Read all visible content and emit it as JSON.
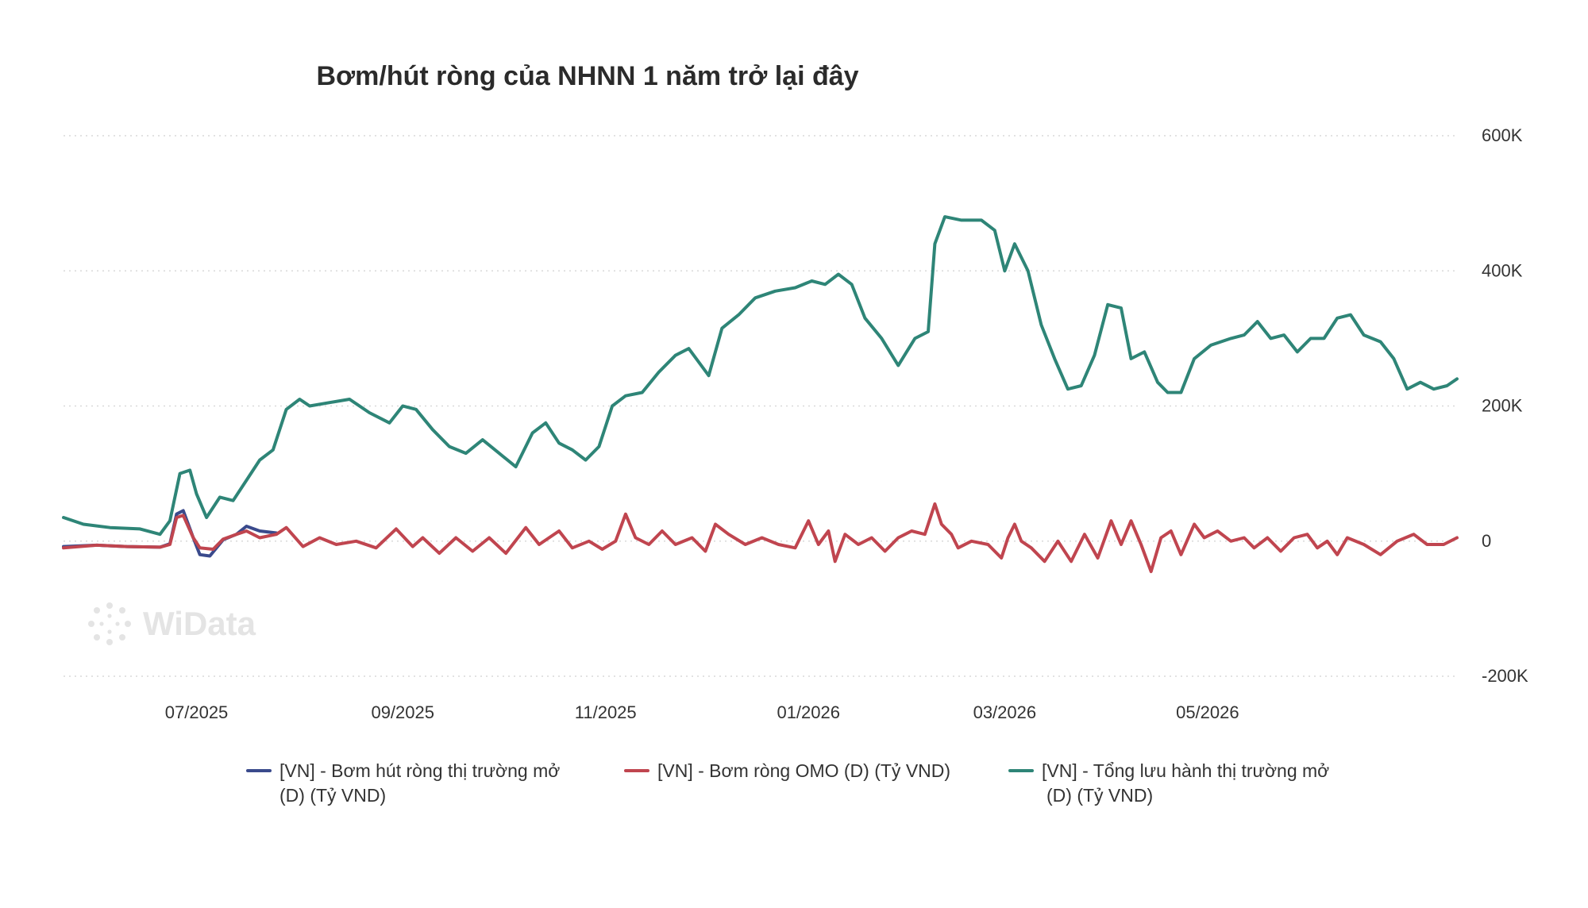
{
  "chart_data": {
    "type": "line",
    "title": "Bơm/hút ròng của NHNN 1 năm trở lại đây",
    "xlabel": "",
    "ylabel": "",
    "x_range": [
      "2025-05-22",
      "2026-07-15"
    ],
    "ylim": [
      -200000,
      600000
    ],
    "y_ticks": [
      {
        "value": 600000,
        "label": "600K"
      },
      {
        "value": 400000,
        "label": "400K"
      },
      {
        "value": 200000,
        "label": "200K"
      },
      {
        "value": 0,
        "label": "0"
      },
      {
        "value": -200000,
        "label": "-200K"
      }
    ],
    "x_ticks": [
      {
        "date": "2025-07-01",
        "label": "07/2025"
      },
      {
        "date": "2025-09-01",
        "label": "09/2025"
      },
      {
        "date": "2025-11-01",
        "label": "11/2025"
      },
      {
        "date": "2026-01-01",
        "label": "01/2026"
      },
      {
        "date": "2026-03-01",
        "label": "03/2026"
      },
      {
        "date": "2026-05-01",
        "label": "05/2026"
      }
    ],
    "grid": true,
    "legend_position": "bottom",
    "series": [
      {
        "name": "[VN] - Bơm hút ròng thị trường mở (D) (Tỷ VND)",
        "legend_lines": [
          "[VN] - Bơm hút ròng thị trường mở",
          "(D) (Tỷ VND)"
        ],
        "color": "#3a4a8c",
        "points": [
          [
            "2025-05-22",
            -8000
          ],
          [
            "2025-06-01",
            -6000
          ],
          [
            "2025-06-10",
            -8000
          ],
          [
            "2025-06-20",
            -9000
          ],
          [
            "2025-06-23",
            -4000
          ],
          [
            "2025-06-25",
            40000
          ],
          [
            "2025-06-27",
            45000
          ],
          [
            "2025-06-30",
            5000
          ],
          [
            "2025-07-02",
            -20000
          ],
          [
            "2025-07-05",
            -22000
          ],
          [
            "2025-07-09",
            2000
          ],
          [
            "2025-07-13",
            10000
          ],
          [
            "2025-07-16",
            22000
          ],
          [
            "2025-07-20",
            15000
          ],
          [
            "2025-07-25",
            12000
          ]
        ]
      },
      {
        "name": "[VN] - Bơm ròng OMO (D) (Tỷ VND)",
        "legend_lines": [
          "[VN] - Bơm ròng OMO (D) (Tỷ VND)"
        ],
        "color": "#c0454f",
        "points": [
          [
            "2025-05-22",
            -10000
          ],
          [
            "2025-06-01",
            -6000
          ],
          [
            "2025-06-10",
            -8000
          ],
          [
            "2025-06-20",
            -9000
          ],
          [
            "2025-06-23",
            -5000
          ],
          [
            "2025-06-25",
            35000
          ],
          [
            "2025-06-27",
            38000
          ],
          [
            "2025-06-30",
            5000
          ],
          [
            "2025-07-02",
            -10000
          ],
          [
            "2025-07-06",
            -12000
          ],
          [
            "2025-07-09",
            3000
          ],
          [
            "2025-07-13",
            10000
          ],
          [
            "2025-07-16",
            15000
          ],
          [
            "2025-07-20",
            5000
          ],
          [
            "2025-07-25",
            10000
          ],
          [
            "2025-07-28",
            20000
          ],
          [
            "2025-08-02",
            -8000
          ],
          [
            "2025-08-07",
            5000
          ],
          [
            "2025-08-12",
            -5000
          ],
          [
            "2025-08-18",
            0
          ],
          [
            "2025-08-24",
            -10000
          ],
          [
            "2025-08-30",
            18000
          ],
          [
            "2025-09-04",
            -8000
          ],
          [
            "2025-09-07",
            5000
          ],
          [
            "2025-09-12",
            -18000
          ],
          [
            "2025-09-17",
            5000
          ],
          [
            "2025-09-22",
            -15000
          ],
          [
            "2025-09-27",
            5000
          ],
          [
            "2025-10-02",
            -18000
          ],
          [
            "2025-10-08",
            20000
          ],
          [
            "2025-10-12",
            -5000
          ],
          [
            "2025-10-18",
            15000
          ],
          [
            "2025-10-22",
            -10000
          ],
          [
            "2025-10-27",
            0
          ],
          [
            "2025-10-31",
            -12000
          ],
          [
            "2025-11-04",
            0
          ],
          [
            "2025-11-07",
            40000
          ],
          [
            "2025-11-10",
            5000
          ],
          [
            "2025-11-14",
            -5000
          ],
          [
            "2025-11-18",
            15000
          ],
          [
            "2025-11-22",
            -5000
          ],
          [
            "2025-11-27",
            5000
          ],
          [
            "2025-12-01",
            -15000
          ],
          [
            "2025-12-04",
            25000
          ],
          [
            "2025-12-08",
            10000
          ],
          [
            "2025-12-13",
            -5000
          ],
          [
            "2025-12-18",
            5000
          ],
          [
            "2025-12-23",
            -5000
          ],
          [
            "2025-12-28",
            -10000
          ],
          [
            "2026-01-01",
            30000
          ],
          [
            "2026-01-04",
            -5000
          ],
          [
            "2026-01-07",
            15000
          ],
          [
            "2026-01-09",
            -30000
          ],
          [
            "2026-01-12",
            10000
          ],
          [
            "2026-01-16",
            -5000
          ],
          [
            "2026-01-20",
            5000
          ],
          [
            "2026-01-24",
            -15000
          ],
          [
            "2026-01-28",
            5000
          ],
          [
            "2026-02-01",
            15000
          ],
          [
            "2026-02-05",
            10000
          ],
          [
            "2026-02-08",
            55000
          ],
          [
            "2026-02-10",
            25000
          ],
          [
            "2026-02-13",
            10000
          ],
          [
            "2026-02-15",
            -10000
          ],
          [
            "2026-02-19",
            0
          ],
          [
            "2026-02-24",
            -5000
          ],
          [
            "2026-02-28",
            -25000
          ],
          [
            "2026-03-02",
            5000
          ],
          [
            "2026-03-04",
            25000
          ],
          [
            "2026-03-06",
            0
          ],
          [
            "2026-03-09",
            -10000
          ],
          [
            "2026-03-13",
            -30000
          ],
          [
            "2026-03-17",
            0
          ],
          [
            "2026-03-21",
            -30000
          ],
          [
            "2026-03-25",
            10000
          ],
          [
            "2026-03-29",
            -25000
          ],
          [
            "2026-04-02",
            30000
          ],
          [
            "2026-04-05",
            -5000
          ],
          [
            "2026-04-08",
            30000
          ],
          [
            "2026-04-11",
            -5000
          ],
          [
            "2026-04-14",
            -45000
          ],
          [
            "2026-04-17",
            5000
          ],
          [
            "2026-04-20",
            15000
          ],
          [
            "2026-04-23",
            -20000
          ],
          [
            "2026-04-27",
            25000
          ],
          [
            "2026-04-30",
            5000
          ],
          [
            "2026-05-04",
            15000
          ],
          [
            "2026-05-08",
            0
          ],
          [
            "2026-05-12",
            5000
          ],
          [
            "2026-05-15",
            -10000
          ],
          [
            "2026-05-19",
            5000
          ],
          [
            "2026-05-23",
            -15000
          ],
          [
            "2026-05-27",
            5000
          ],
          [
            "2026-05-31",
            10000
          ],
          [
            "2026-06-03",
            -10000
          ],
          [
            "2026-06-06",
            0
          ],
          [
            "2026-06-09",
            -20000
          ],
          [
            "2026-06-12",
            5000
          ],
          [
            "2026-06-17",
            -5000
          ],
          [
            "2026-06-22",
            -20000
          ],
          [
            "2026-06-27",
            0
          ],
          [
            "2026-07-02",
            10000
          ],
          [
            "2026-07-06",
            -5000
          ],
          [
            "2026-07-11",
            -5000
          ],
          [
            "2026-07-15",
            5000
          ]
        ]
      },
      {
        "name": "[VN] - Tổng lưu hành thị trường mở (D) (Tỷ VND)",
        "legend_lines": [
          "[VN] - Tổng lưu hành thị trường mở",
          "(D) (Tỷ VND)"
        ],
        "color": "#2e8577",
        "points": [
          [
            "2025-05-22",
            35000
          ],
          [
            "2025-05-28",
            25000
          ],
          [
            "2025-06-05",
            20000
          ],
          [
            "2025-06-14",
            18000
          ],
          [
            "2025-06-20",
            10000
          ],
          [
            "2025-06-23",
            30000
          ],
          [
            "2025-06-26",
            100000
          ],
          [
            "2025-06-29",
            105000
          ],
          [
            "2025-07-01",
            70000
          ],
          [
            "2025-07-04",
            35000
          ],
          [
            "2025-07-08",
            65000
          ],
          [
            "2025-07-12",
            60000
          ],
          [
            "2025-07-16",
            90000
          ],
          [
            "2025-07-20",
            120000
          ],
          [
            "2025-07-24",
            135000
          ],
          [
            "2025-07-28",
            195000
          ],
          [
            "2025-08-01",
            210000
          ],
          [
            "2025-08-04",
            200000
          ],
          [
            "2025-08-10",
            205000
          ],
          [
            "2025-08-16",
            210000
          ],
          [
            "2025-08-22",
            190000
          ],
          [
            "2025-08-28",
            175000
          ],
          [
            "2025-09-01",
            200000
          ],
          [
            "2025-09-05",
            195000
          ],
          [
            "2025-09-10",
            165000
          ],
          [
            "2025-09-15",
            140000
          ],
          [
            "2025-09-20",
            130000
          ],
          [
            "2025-09-25",
            150000
          ],
          [
            "2025-09-30",
            130000
          ],
          [
            "2025-10-05",
            110000
          ],
          [
            "2025-10-10",
            160000
          ],
          [
            "2025-10-14",
            175000
          ],
          [
            "2025-10-18",
            145000
          ],
          [
            "2025-10-22",
            135000
          ],
          [
            "2025-10-26",
            120000
          ],
          [
            "2025-10-30",
            140000
          ],
          [
            "2025-11-03",
            200000
          ],
          [
            "2025-11-07",
            215000
          ],
          [
            "2025-11-12",
            220000
          ],
          [
            "2025-11-17",
            250000
          ],
          [
            "2025-11-22",
            275000
          ],
          [
            "2025-11-26",
            285000
          ],
          [
            "2025-12-02",
            245000
          ],
          [
            "2025-12-06",
            315000
          ],
          [
            "2025-12-11",
            335000
          ],
          [
            "2025-12-16",
            360000
          ],
          [
            "2025-12-22",
            370000
          ],
          [
            "2025-12-28",
            375000
          ],
          [
            "2026-01-02",
            385000
          ],
          [
            "2026-01-06",
            380000
          ],
          [
            "2026-01-10",
            395000
          ],
          [
            "2026-01-14",
            380000
          ],
          [
            "2026-01-18",
            330000
          ],
          [
            "2026-01-23",
            300000
          ],
          [
            "2026-01-28",
            260000
          ],
          [
            "2026-02-02",
            300000
          ],
          [
            "2026-02-06",
            310000
          ],
          [
            "2026-02-08",
            440000
          ],
          [
            "2026-02-11",
            480000
          ],
          [
            "2026-02-16",
            475000
          ],
          [
            "2026-02-22",
            475000
          ],
          [
            "2026-02-26",
            460000
          ],
          [
            "2026-03-01",
            400000
          ],
          [
            "2026-03-04",
            440000
          ],
          [
            "2026-03-08",
            400000
          ],
          [
            "2026-03-12",
            320000
          ],
          [
            "2026-03-16",
            270000
          ],
          [
            "2026-03-20",
            225000
          ],
          [
            "2026-03-24",
            230000
          ],
          [
            "2026-03-28",
            275000
          ],
          [
            "2026-04-01",
            350000
          ],
          [
            "2026-04-05",
            345000
          ],
          [
            "2026-04-08",
            270000
          ],
          [
            "2026-04-12",
            280000
          ],
          [
            "2026-04-16",
            235000
          ],
          [
            "2026-04-19",
            220000
          ],
          [
            "2026-04-23",
            220000
          ],
          [
            "2026-04-27",
            270000
          ],
          [
            "2026-05-02",
            290000
          ],
          [
            "2026-05-08",
            300000
          ],
          [
            "2026-05-12",
            305000
          ],
          [
            "2026-05-16",
            325000
          ],
          [
            "2026-05-20",
            300000
          ],
          [
            "2026-05-24",
            305000
          ],
          [
            "2026-05-28",
            280000
          ],
          [
            "2026-06-01",
            300000
          ],
          [
            "2026-06-05",
            300000
          ],
          [
            "2026-06-09",
            330000
          ],
          [
            "2026-06-13",
            335000
          ],
          [
            "2026-06-17",
            305000
          ],
          [
            "2026-06-22",
            295000
          ],
          [
            "2026-06-26",
            270000
          ],
          [
            "2026-06-30",
            225000
          ],
          [
            "2026-07-04",
            235000
          ],
          [
            "2026-07-08",
            225000
          ],
          [
            "2026-07-12",
            230000
          ],
          [
            "2026-07-15",
            240000
          ]
        ]
      }
    ]
  },
  "watermark": {
    "text": "WiData",
    "color": "#e4e4e4"
  }
}
